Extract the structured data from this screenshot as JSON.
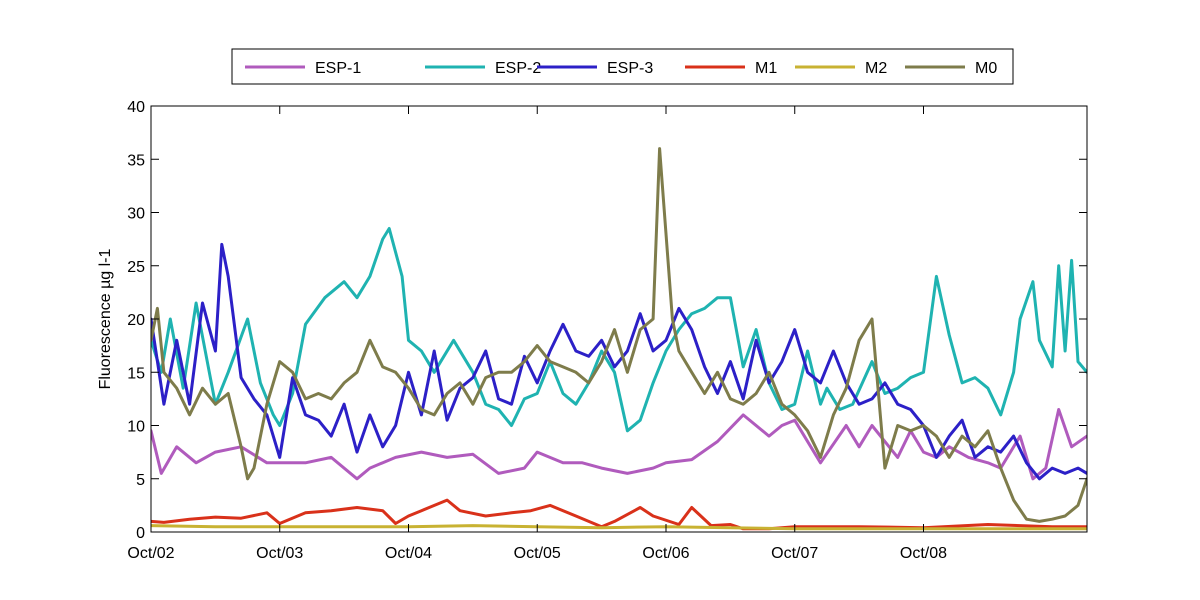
{
  "chart_data": {
    "type": "line",
    "xlabel": "",
    "ylabel": "Fluorescence µg l-1",
    "ylim": [
      0,
      40
    ],
    "x_range": [
      "Oct/02",
      "Oct/08+0.27"
    ],
    "y_ticks": [
      0,
      5,
      10,
      15,
      20,
      25,
      30,
      35,
      40
    ],
    "x_ticks": [
      "Oct/02",
      "Oct/03",
      "Oct/04",
      "Oct/05",
      "Oct/06",
      "Oct/07",
      "Oct/08"
    ],
    "grid": false,
    "legend": {
      "placement": "top",
      "orientation": "horizontal"
    },
    "series": [
      {
        "name": "ESP-1",
        "color": "#b05bbd",
        "x": [
          0,
          0.08,
          0.2,
          0.35,
          0.5,
          0.7,
          0.9,
          1.0,
          1.2,
          1.4,
          1.6,
          1.7,
          1.9,
          2.1,
          2.3,
          2.5,
          2.7,
          2.9,
          3.0,
          3.2,
          3.35,
          3.5,
          3.7,
          3.9,
          4.0,
          4.2,
          4.4,
          4.6,
          4.8,
          4.9,
          5.0,
          5.2,
          5.4,
          5.5,
          5.6,
          5.8,
          5.9,
          6.0,
          6.1,
          6.2,
          6.35,
          6.5,
          6.6,
          6.75,
          6.85,
          6.95,
          7.05,
          7.15,
          7.27
        ],
        "values": [
          9.5,
          5.5,
          8.0,
          6.5,
          7.5,
          8.0,
          6.5,
          6.5,
          6.5,
          7.0,
          5.0,
          6.0,
          7.0,
          7.5,
          7.0,
          7.3,
          5.5,
          6.0,
          7.5,
          6.5,
          6.5,
          6.0,
          5.5,
          6.0,
          6.5,
          6.8,
          8.5,
          11.0,
          9.0,
          10.0,
          10.5,
          6.5,
          10.0,
          8.0,
          10.0,
          7.0,
          9.5,
          7.5,
          7.0,
          8.0,
          7.0,
          6.5,
          6.0,
          9.0,
          5.0,
          6.0,
          11.5,
          8.0,
          9.0
        ]
      },
      {
        "name": "ESP-2",
        "color": "#1fb3b1",
        "x": [
          0,
          0.08,
          0.15,
          0.25,
          0.35,
          0.5,
          0.6,
          0.75,
          0.85,
          0.95,
          1.0,
          1.1,
          1.2,
          1.35,
          1.5,
          1.6,
          1.7,
          1.8,
          1.85,
          1.95,
          2.0,
          2.1,
          2.2,
          2.35,
          2.5,
          2.6,
          2.7,
          2.8,
          2.9,
          3.0,
          3.1,
          3.2,
          3.3,
          3.4,
          3.5,
          3.6,
          3.7,
          3.8,
          3.9,
          4.0,
          4.1,
          4.2,
          4.3,
          4.4,
          4.5,
          4.6,
          4.7,
          4.8,
          4.9,
          5.0,
          5.1,
          5.2,
          5.25,
          5.35,
          5.45,
          5.6,
          5.7,
          5.8,
          5.9,
          6.0,
          6.1,
          6.2,
          6.3,
          6.4,
          6.5,
          6.6,
          6.7,
          6.75,
          6.85,
          6.9,
          7.0,
          7.05,
          7.1,
          7.15,
          7.2,
          7.27
        ],
        "values": [
          18.0,
          15.0,
          20.0,
          13.5,
          21.5,
          12.0,
          15.0,
          20.0,
          14.0,
          11.0,
          10.0,
          13.0,
          19.5,
          22.0,
          23.5,
          22.0,
          24.0,
          27.5,
          28.5,
          24.0,
          18.0,
          17.0,
          15.0,
          18.0,
          15.0,
          12.0,
          11.5,
          10.0,
          12.5,
          13.0,
          16.0,
          13.0,
          12.0,
          14.0,
          17.0,
          15.0,
          9.5,
          10.5,
          14.0,
          17.0,
          19.0,
          20.5,
          21.0,
          22.0,
          22.0,
          15.5,
          19.0,
          14.0,
          11.5,
          12.0,
          17.0,
          12.0,
          13.5,
          11.5,
          12.0,
          16.0,
          13.0,
          13.5,
          14.5,
          15.0,
          24.0,
          18.5,
          14.0,
          14.5,
          13.5,
          11.0,
          15.0,
          20.0,
          23.5,
          18.0,
          15.5,
          25.0,
          17.0,
          25.5,
          16.0,
          15.0
        ]
      },
      {
        "name": "ESP-3",
        "color": "#2c20c7",
        "x": [
          0,
          0.1,
          0.2,
          0.3,
          0.4,
          0.5,
          0.55,
          0.6,
          0.7,
          0.8,
          0.9,
          1.0,
          1.1,
          1.2,
          1.3,
          1.4,
          1.5,
          1.6,
          1.7,
          1.8,
          1.9,
          2.0,
          2.1,
          2.2,
          2.3,
          2.4,
          2.5,
          2.6,
          2.7,
          2.8,
          2.9,
          3.0,
          3.1,
          3.2,
          3.3,
          3.4,
          3.5,
          3.6,
          3.7,
          3.8,
          3.9,
          4.0,
          4.1,
          4.2,
          4.3,
          4.4,
          4.5,
          4.6,
          4.7,
          4.8,
          4.9,
          5.0,
          5.1,
          5.2,
          5.3,
          5.4,
          5.5,
          5.6,
          5.7,
          5.8,
          5.9,
          6.0,
          6.1,
          6.2,
          6.3,
          6.4,
          6.5,
          6.6,
          6.7,
          6.8,
          6.9,
          7.0,
          7.1,
          7.2,
          7.27
        ],
        "values": [
          20.0,
          12.0,
          18.0,
          12.0,
          21.5,
          17.0,
          27.0,
          24.0,
          14.5,
          12.5,
          11.0,
          7.0,
          14.5,
          11.0,
          10.5,
          9.0,
          12.0,
          7.5,
          11.0,
          8.0,
          10.0,
          15.0,
          11.0,
          17.0,
          10.5,
          13.5,
          14.5,
          17.0,
          12.5,
          12.0,
          16.5,
          14.0,
          17.0,
          19.5,
          17.0,
          16.5,
          18.0,
          15.5,
          17.0,
          20.5,
          17.0,
          18.0,
          21.0,
          19.0,
          15.5,
          13.0,
          16.0,
          12.5,
          18.0,
          14.0,
          16.0,
          19.0,
          15.0,
          14.0,
          17.0,
          14.0,
          12.0,
          12.5,
          14.0,
          12.0,
          11.5,
          10.0,
          7.0,
          9.0,
          10.5,
          7.0,
          8.0,
          7.5,
          9.0,
          6.5,
          5.0,
          6.0,
          5.5,
          6.0,
          5.5
        ]
      },
      {
        "name": "M1",
        "color": "#d9311a",
        "x": [
          0,
          0.1,
          0.3,
          0.5,
          0.7,
          0.9,
          1.0,
          1.2,
          1.4,
          1.6,
          1.8,
          1.9,
          2.0,
          2.1,
          2.3,
          2.4,
          2.6,
          2.8,
          2.95,
          3.1,
          3.3,
          3.5,
          3.6,
          3.8,
          3.9,
          4.1,
          4.2,
          4.35,
          4.5,
          4.6,
          4.8,
          5.0,
          5.5,
          6.0,
          6.5,
          7.0,
          7.27
        ],
        "values": [
          1.0,
          0.9,
          1.2,
          1.4,
          1.3,
          1.8,
          0.8,
          1.8,
          2.0,
          2.3,
          2.0,
          0.8,
          1.5,
          2.0,
          3.0,
          2.0,
          1.5,
          1.8,
          2.0,
          2.5,
          1.5,
          0.5,
          1.0,
          2.3,
          1.5,
          0.7,
          2.3,
          0.6,
          0.7,
          0.3,
          0.3,
          0.5,
          0.5,
          0.4,
          0.7,
          0.5,
          0.5
        ]
      },
      {
        "name": "M2",
        "color": "#c8b232",
        "x": [
          0,
          0.5,
          1.0,
          1.5,
          2.0,
          2.5,
          3.0,
          3.5,
          4.0,
          4.5,
          5.0,
          5.5,
          6.0,
          6.5,
          7.0,
          7.27
        ],
        "values": [
          0.6,
          0.5,
          0.5,
          0.5,
          0.5,
          0.6,
          0.5,
          0.4,
          0.5,
          0.4,
          0.3,
          0.3,
          0.3,
          0.3,
          0.3,
          0.3
        ]
      },
      {
        "name": "M0",
        "color": "#7e7c4b",
        "x": [
          0,
          0.05,
          0.1,
          0.2,
          0.3,
          0.4,
          0.5,
          0.6,
          0.7,
          0.75,
          0.8,
          0.9,
          1.0,
          1.1,
          1.2,
          1.3,
          1.4,
          1.5,
          1.6,
          1.7,
          1.8,
          1.9,
          2.0,
          2.1,
          2.2,
          2.3,
          2.4,
          2.5,
          2.6,
          2.7,
          2.8,
          2.9,
          3.0,
          3.1,
          3.2,
          3.3,
          3.4,
          3.5,
          3.6,
          3.7,
          3.8,
          3.9,
          3.95,
          4.0,
          4.05,
          4.1,
          4.2,
          4.3,
          4.4,
          4.5,
          4.6,
          4.7,
          4.8,
          4.9,
          5.0,
          5.1,
          5.2,
          5.3,
          5.4,
          5.5,
          5.6,
          5.7,
          5.8,
          5.9,
          6.0,
          6.1,
          6.2,
          6.3,
          6.4,
          6.5,
          6.6,
          6.7,
          6.8,
          6.9,
          7.0,
          7.1,
          7.2,
          7.27
        ],
        "values": [
          18.0,
          21.0,
          15.0,
          13.5,
          11.0,
          13.5,
          12.0,
          13.0,
          8.0,
          5.0,
          6.0,
          12.0,
          16.0,
          15.0,
          12.5,
          13.0,
          12.5,
          14.0,
          15.0,
          18.0,
          15.5,
          15.0,
          13.5,
          11.5,
          11.0,
          13.0,
          14.0,
          12.0,
          14.5,
          15.0,
          15.0,
          16.0,
          17.5,
          16.0,
          15.5,
          15.0,
          14.0,
          16.0,
          19.0,
          15.0,
          19.0,
          20.0,
          36.0,
          28.0,
          20.0,
          17.0,
          15.0,
          13.0,
          15.0,
          12.5,
          12.0,
          13.0,
          15.0,
          12.0,
          11.0,
          9.5,
          7.0,
          11.0,
          13.5,
          18.0,
          20.0,
          6.0,
          10.0,
          9.5,
          10.0,
          9.0,
          7.0,
          9.0,
          8.0,
          9.5,
          6.0,
          3.0,
          1.2,
          1.0,
          1.2,
          1.5,
          2.5,
          5.0
        ]
      }
    ]
  }
}
